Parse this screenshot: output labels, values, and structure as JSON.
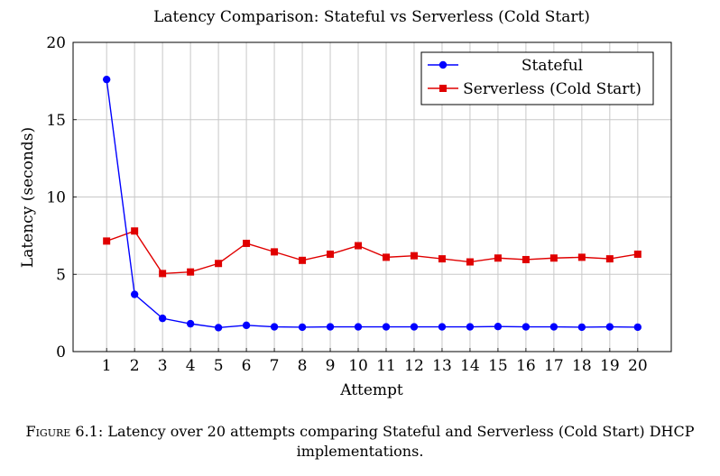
{
  "chart_data": {
    "type": "line",
    "title": "Latency Comparison: Stateful vs Serverless (Cold Start)",
    "xlabel": "Attempt",
    "ylabel": "Latency (seconds)",
    "x": [
      1,
      2,
      3,
      4,
      5,
      6,
      7,
      8,
      9,
      10,
      11,
      12,
      13,
      14,
      15,
      16,
      17,
      18,
      19,
      20
    ],
    "xlim": [
      -0.2,
      21.2
    ],
    "ylim": [
      0,
      20
    ],
    "yticks": [
      0,
      5,
      10,
      15,
      20
    ],
    "grid": true,
    "legend_position": "top-right",
    "series": [
      {
        "name": "Stateful",
        "color": "#0000ff",
        "marker": "circle",
        "values": [
          17.6,
          3.7,
          2.15,
          1.8,
          1.55,
          1.7,
          1.6,
          1.58,
          1.6,
          1.6,
          1.6,
          1.6,
          1.6,
          1.6,
          1.62,
          1.6,
          1.6,
          1.58,
          1.6,
          1.58
        ]
      },
      {
        "name": "Serverless (Cold Start)",
        "color": "#e00000",
        "marker": "square",
        "values": [
          7.15,
          7.8,
          5.05,
          5.15,
          5.7,
          7.0,
          6.45,
          5.9,
          6.3,
          6.85,
          6.1,
          6.2,
          6.0,
          5.8,
          6.05,
          5.95,
          6.05,
          6.1,
          6.0,
          6.3
        ]
      }
    ]
  },
  "caption": {
    "label": "Figure 6.1:",
    "text": "Latency over 20 attempts comparing Stateful and Serverless (Cold Start) DHCP implementations."
  }
}
